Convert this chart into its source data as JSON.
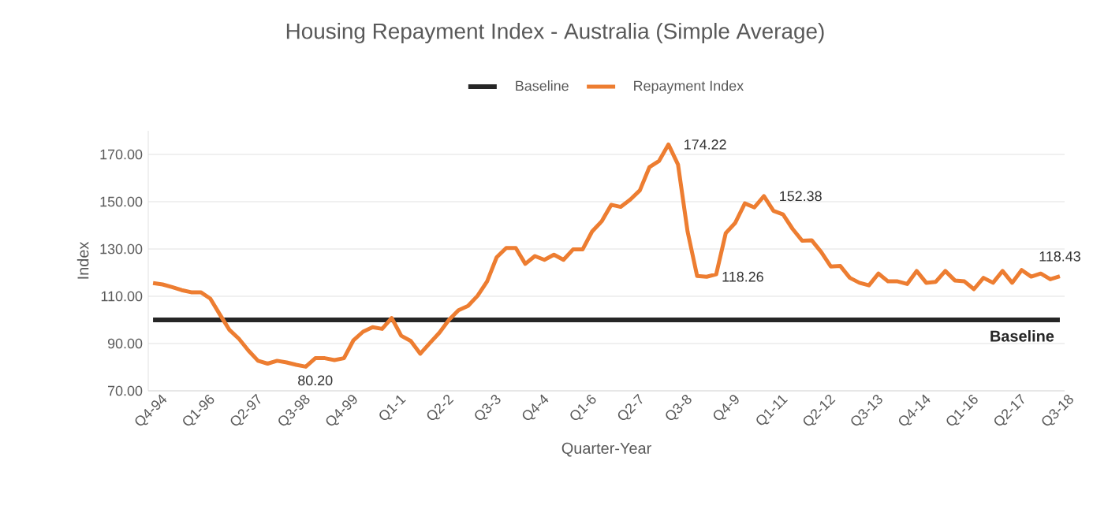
{
  "chart_data": {
    "type": "line",
    "title": "Housing Repayment Index - Australia (Simple Average)",
    "xlabel": "Quarter-Year",
    "ylabel": "Index",
    "categories": [
      "Q4-94",
      null,
      null,
      null,
      null,
      "Q1-96",
      null,
      null,
      null,
      null,
      "Q2-97",
      null,
      null,
      null,
      null,
      "Q3-98",
      null,
      null,
      null,
      null,
      "Q4-99",
      null,
      null,
      null,
      null,
      "Q1-1",
      null,
      null,
      null,
      null,
      "Q2-2",
      null,
      null,
      null,
      null,
      "Q3-3",
      null,
      null,
      null,
      null,
      "Q4-4",
      null,
      null,
      null,
      null,
      "Q1-6",
      null,
      null,
      null,
      null,
      "Q2-7",
      null,
      null,
      null,
      null,
      "Q3-8",
      null,
      null,
      null,
      null,
      "Q4-9",
      null,
      null,
      null,
      null,
      "Q1-11",
      null,
      null,
      null,
      null,
      "Q2-12",
      null,
      null,
      null,
      null,
      "Q3-13",
      null,
      null,
      null,
      null,
      "Q4-14",
      null,
      null,
      null,
      null,
      "Q1-16",
      null,
      null,
      null,
      null,
      "Q2-17",
      null,
      null,
      null,
      null,
      "Q3-18"
    ],
    "series": [
      {
        "name": "Baseline",
        "color": "#262626",
        "values": [
          100,
          100,
          100,
          100,
          100,
          100,
          100,
          100,
          100,
          100,
          100,
          100,
          100,
          100,
          100,
          100,
          100,
          100,
          100,
          100,
          100,
          100,
          100,
          100,
          100,
          100,
          100,
          100,
          100,
          100,
          100,
          100,
          100,
          100,
          100,
          100,
          100,
          100,
          100,
          100,
          100,
          100,
          100,
          100,
          100,
          100,
          100,
          100,
          100,
          100,
          100,
          100,
          100,
          100,
          100,
          100,
          100,
          100,
          100,
          100,
          100,
          100,
          100,
          100,
          100,
          100,
          100,
          100,
          100,
          100,
          100,
          100,
          100,
          100,
          100,
          100,
          100,
          100,
          100,
          100,
          100,
          100,
          100,
          100,
          100,
          100,
          100,
          100,
          100,
          100,
          100,
          100,
          100,
          100,
          100,
          100
        ]
      },
      {
        "name": "Repayment Index",
        "color": "#ed7d31",
        "values": [
          115.6,
          115,
          113.9,
          112.6,
          111.7,
          111.7,
          109,
          102.3,
          95.8,
          92,
          87,
          82.7,
          81.5,
          82.7,
          82,
          81,
          80.2,
          83.8,
          83.8,
          83,
          83.8,
          91.4,
          95,
          96.9,
          96.2,
          100.8,
          93.3,
          91.1,
          85.7,
          90.2,
          94.6,
          100,
          104.1,
          105.9,
          110.2,
          116.3,
          126.5,
          130.4,
          130.4,
          123.7,
          127,
          125.4,
          127.6,
          125.4,
          129.8,
          129.8,
          137.4,
          141.7,
          148.7,
          147.8,
          150.9,
          154.8,
          164.6,
          167.2,
          174.22,
          165.7,
          137.4,
          118.6,
          118.26,
          119.3,
          136.7,
          141.1,
          149.3,
          147.6,
          152.38,
          146.1,
          144.6,
          138.5,
          133.5,
          133.7,
          128.7,
          122.6,
          122.8,
          117.8,
          115.7,
          114.6,
          119.6,
          116.3,
          116.3,
          115.2,
          120.7,
          115.7,
          116.1,
          120.7,
          116.7,
          116.3,
          113,
          117.8,
          115.7,
          120.7,
          115.7,
          121.1,
          118.3,
          119.6,
          117.2,
          118.43
        ],
        "value_labels": [
          null,
          null,
          null,
          null,
          null,
          null,
          null,
          null,
          null,
          null,
          null,
          null,
          null,
          null,
          null,
          null,
          "80.20",
          null,
          null,
          null,
          null,
          null,
          null,
          null,
          null,
          null,
          null,
          null,
          null,
          null,
          null,
          null,
          null,
          null,
          null,
          null,
          null,
          null,
          null,
          null,
          null,
          null,
          null,
          null,
          null,
          null,
          null,
          null,
          null,
          null,
          null,
          null,
          null,
          null,
          "174.22",
          null,
          null,
          null,
          "118.26",
          null,
          null,
          null,
          null,
          null,
          "152.38",
          null,
          null,
          null,
          null,
          null,
          null,
          null,
          null,
          null,
          null,
          null,
          null,
          null,
          null,
          null,
          null,
          null,
          null,
          null,
          null,
          null,
          null,
          null,
          null,
          null,
          null,
          null,
          null,
          null,
          null,
          "118.43"
        ]
      }
    ],
    "ylim": [
      70,
      180
    ],
    "yticks": [
      {
        "value": 70,
        "label": "70.00"
      },
      {
        "value": 90,
        "label": "90.00"
      },
      {
        "value": 110,
        "label": "110.00"
      },
      {
        "value": 130,
        "label": "130.00"
      },
      {
        "value": 150,
        "label": "150.00"
      },
      {
        "value": 170,
        "label": "170.00"
      }
    ],
    "grid": "y",
    "legend": "top",
    "annotations": [
      {
        "text": "Baseline",
        "x": "Q3-18",
        "y": 100
      }
    ]
  }
}
